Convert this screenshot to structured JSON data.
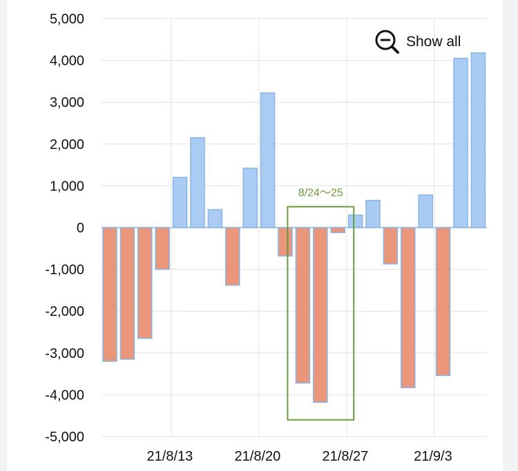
{
  "chart_data": {
    "type": "bar",
    "y_ticks": [
      5000,
      4000,
      3000,
      2000,
      1000,
      0,
      -1000,
      -2000,
      -3000,
      -4000,
      -5000
    ],
    "y_tick_labels": [
      "5,000",
      "4,000",
      "3,000",
      "2,000",
      "1,000",
      "0",
      "-1,000",
      "-2,000",
      "-3,000",
      "-4,000",
      "-5,000"
    ],
    "ylim": [
      -5000,
      5000
    ],
    "x_tick_labels": [
      "21/8/13",
      "21/8/20",
      "21/8/27",
      "21/9/3"
    ],
    "x_tick_after_bar_index": [
      3,
      8,
      13,
      18
    ],
    "values": [
      -3200,
      -3150,
      -2650,
      -1000,
      1200,
      2150,
      430,
      -1380,
      1420,
      3220,
      -680,
      -3720,
      -4180,
      -120,
      300,
      650,
      -870,
      -3830,
      780,
      -3540,
      4050,
      4180
    ],
    "positive_color": "#a9cbf4",
    "negative_color": "#ea967b",
    "bar_border_color": "#86b5e6",
    "grid": true,
    "annotation": {
      "label": "8/24〜25",
      "from_bar_index": 11,
      "to_bar_index": 12,
      "y_top": 500,
      "y_bottom": -4600,
      "color": "#6a9a3c"
    }
  },
  "controls": {
    "show_all_label": "Show all",
    "show_all_icon": "zoom-out-icon"
  }
}
